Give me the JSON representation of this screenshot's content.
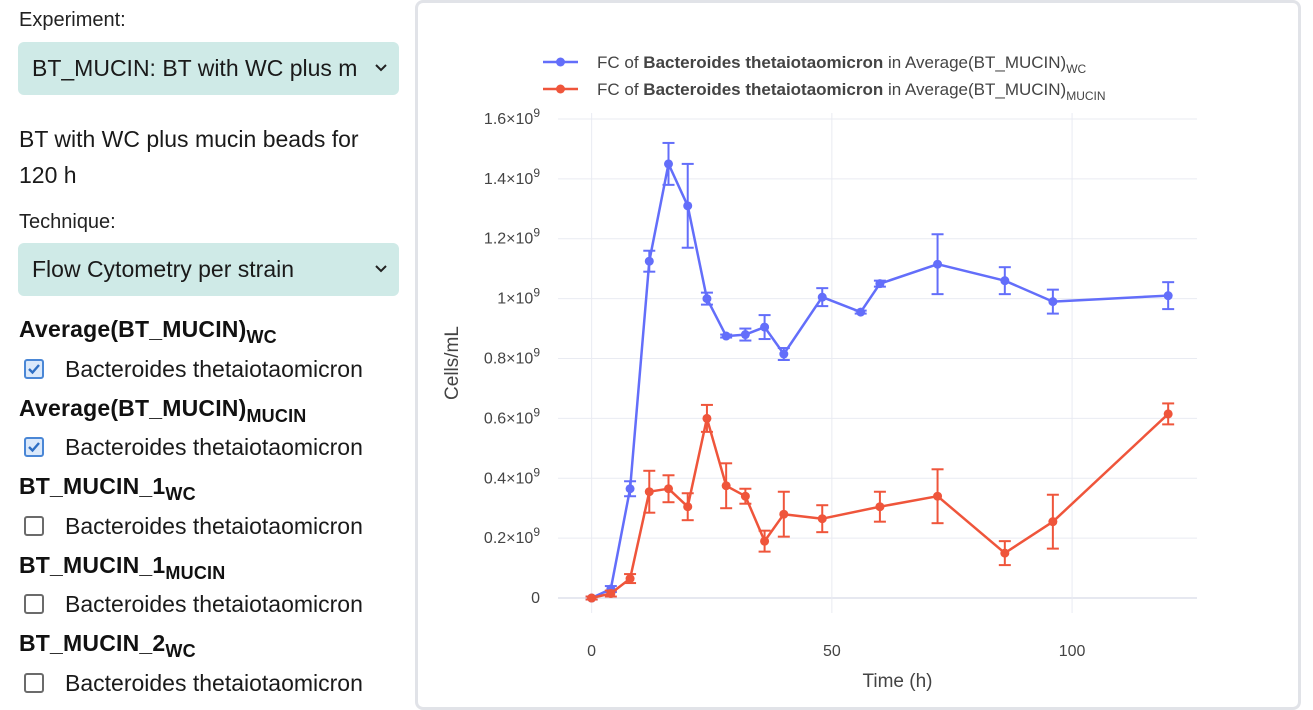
{
  "sidebar": {
    "experiment_label": "Experiment:",
    "experiment_value": "BT_MUCIN: BT with WC plus m",
    "experiment_description": "BT with WC plus mucin beads for 120 h",
    "technique_label": "Technique:",
    "technique_value": "Flow Cytometry per strain",
    "groups": [
      {
        "name": "Average(BT_MUCIN)",
        "sub": "WC",
        "option": "Bacteroides thetaiotaomicron",
        "checked": true
      },
      {
        "name": "Average(BT_MUCIN)",
        "sub": "MUCIN",
        "option": "Bacteroides thetaiotaomicron",
        "checked": true
      },
      {
        "name": "BT_MUCIN_1",
        "sub": "WC",
        "option": "Bacteroides thetaiotaomicron",
        "checked": false
      },
      {
        "name": "BT_MUCIN_1",
        "sub": "MUCIN",
        "option": "Bacteroides thetaiotaomicron",
        "checked": false
      },
      {
        "name": "BT_MUCIN_2",
        "sub": "WC",
        "option": "Bacteroides thetaiotaomicron",
        "checked": false
      }
    ]
  },
  "chart_data": {
    "type": "line",
    "xlabel": "Time (h)",
    "ylabel": "Cells/mL",
    "xlim": [
      -7,
      126
    ],
    "ylim": [
      -50000000.0,
      1620000000.0
    ],
    "x_ticks": [
      0,
      50,
      100
    ],
    "x_tick_labels": [
      "0",
      "50",
      "100"
    ],
    "y_ticks": [
      0,
      200000000.0,
      400000000.0,
      600000000.0,
      800000000.0,
      1000000000.0,
      1200000000.0,
      1400000000.0,
      1600000000.0
    ],
    "y_tick_labels": [
      {
        "m": "0",
        "e": ""
      },
      {
        "m": "0.2×10",
        "e": "9"
      },
      {
        "m": "0.4×10",
        "e": "9"
      },
      {
        "m": "0.6×10",
        "e": "9"
      },
      {
        "m": "0.8×10",
        "e": "9"
      },
      {
        "m": "1×10",
        "e": "9"
      },
      {
        "m": "1.2×10",
        "e": "9"
      },
      {
        "m": "1.4×10",
        "e": "9"
      },
      {
        "m": "1.6×10",
        "e": "9"
      }
    ],
    "grid": true,
    "legend_position": "top",
    "series": [
      {
        "legend_prefix": "FC of ",
        "legend_bold": "Bacteroides thetaiotaomicron",
        "legend_mid": " in Average(BT_MUCIN)",
        "legend_sub": "WC",
        "color": "#636efa",
        "x": [
          0,
          4,
          8,
          12,
          16,
          20,
          24,
          28,
          32,
          36,
          40,
          48,
          56,
          60,
          72,
          86,
          96,
          120
        ],
        "y": [
          0,
          30000000.0,
          365000000.0,
          1125000000.0,
          1450000000.0,
          1310000000.0,
          1000000000.0,
          875000000.0,
          880000000.0,
          905000000.0,
          815000000.0,
          1005000000.0,
          955000000.0,
          1050000000.0,
          1115000000.0,
          1060000000.0,
          990000000.0,
          1010000000.0
        ],
        "err": [
          5000000.0,
          10000000.0,
          25000000.0,
          35000000.0,
          70000000.0,
          140000000.0,
          20000000.0,
          5000000.0,
          20000000.0,
          40000000.0,
          20000000.0,
          30000000.0,
          5000000.0,
          10000000.0,
          100000000.0,
          45000000.0,
          40000000.0,
          45000000.0
        ]
      },
      {
        "legend_prefix": "FC of ",
        "legend_bold": "Bacteroides thetaiotaomicron",
        "legend_mid": " in Average(BT_MUCIN)",
        "legend_sub": "MUCIN",
        "color": "#ef553b",
        "x": [
          0,
          4,
          8,
          12,
          16,
          20,
          24,
          28,
          32,
          36,
          40,
          48,
          60,
          72,
          86,
          96,
          120
        ],
        "y": [
          0,
          15000000.0,
          65000000.0,
          355000000.0,
          365000000.0,
          305000000.0,
          600000000.0,
          375000000.0,
          340000000.0,
          190000000.0,
          280000000.0,
          265000000.0,
          305000000.0,
          340000000.0,
          150000000.0,
          255000000.0,
          615000000.0
        ],
        "err": [
          5000000.0,
          10000000.0,
          15000000.0,
          70000000.0,
          45000000.0,
          45000000.0,
          45000000.0,
          75000000.0,
          25000000.0,
          35000000.0,
          75000000.0,
          45000000.0,
          50000000.0,
          90000000.0,
          40000000.0,
          90000000.0,
          35000000.0
        ]
      }
    ]
  }
}
